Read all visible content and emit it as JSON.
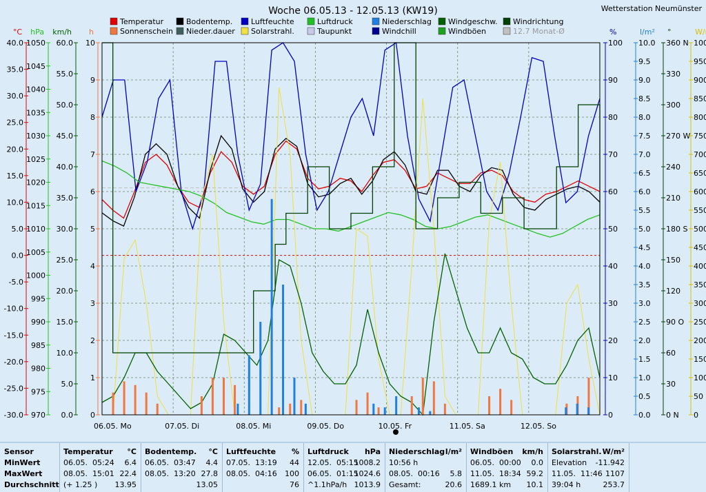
{
  "title": "Woche 06.05.13 - 12.05.13 (KW19)",
  "station": "Wetterstation Neumünster",
  "legend": [
    {
      "label": "Temperatur",
      "color": "#e00000"
    },
    {
      "label": "Bodentemp.",
      "color": "#000000"
    },
    {
      "label": "Luftfeuchte",
      "color": "#0000c0"
    },
    {
      "label": "Luftdruck",
      "color": "#22c022"
    },
    {
      "label": "Niederschlag",
      "color": "#2080e0"
    },
    {
      "label": "Windgeschw.",
      "color": "#006000"
    },
    {
      "label": "Windrichtung",
      "color": "#004000"
    },
    {
      "label": "Sonnenschein",
      "color": "#f07840"
    },
    {
      "label": "Nieder.dauer",
      "color": "#406060"
    },
    {
      "label": "Solarstrahl.",
      "color": "#f0e040"
    },
    {
      "label": "Taupunkt",
      "color": "#c8c8e8"
    },
    {
      "label": "Windchill",
      "color": "#000090"
    },
    {
      "label": "Windböen",
      "color": "#20a020"
    },
    {
      "label": "12.7 Monat-Ø",
      "color": "#c0c0c0"
    }
  ],
  "chart_data": {
    "type": "line",
    "title": "Woche 06.05.13 - 12.05.13 (KW19)",
    "x_labels": [
      "06.05. Mo",
      "07.05. Di",
      "08.05. Mi",
      "09.05. Do",
      "10.05. Fr",
      "11.05. Sa",
      "12.05. So"
    ],
    "left_axes": [
      {
        "unit": "°C",
        "ticks": [
          "40.0",
          "35.0",
          "30.0",
          "25.0",
          "20.0",
          "15.0",
          "10.0",
          "5.0",
          "0.0",
          "-5.0",
          "-10.0",
          "-15.0",
          "-20.0",
          "-25.0",
          "-30.0"
        ],
        "color": "#e00000"
      },
      {
        "unit": "hPa",
        "ticks": [
          "1050",
          "1045",
          "1040",
          "1035",
          "1030",
          "1025",
          "1020",
          "1015",
          "1010",
          "1005",
          "1000",
          "995",
          "990",
          "985",
          "980",
          "975",
          "970"
        ],
        "color": "#22c022"
      },
      {
        "unit": "km/h",
        "ticks": [
          "60.0",
          "55.0",
          "50.0",
          "45.0",
          "40.0",
          "35.0",
          "30.0",
          "25.0",
          "20.0",
          "15.0",
          "10.0",
          "5.0",
          "0.0"
        ],
        "color": "#006000"
      },
      {
        "unit": "h",
        "ticks": [
          "10",
          "9",
          "8",
          "7",
          "6",
          "5",
          "4",
          "3",
          "2",
          "1",
          "0"
        ],
        "color": "#f07840"
      }
    ],
    "right_axes": [
      {
        "unit": "%",
        "ticks": [
          "100",
          "90",
          "80",
          "70",
          "60",
          "50",
          "40",
          "30",
          "20",
          "10",
          "0"
        ],
        "color": "#0000c0"
      },
      {
        "unit": "l/m²",
        "ticks": [
          "10.0",
          "9.5",
          "9.0",
          "8.5",
          "8.0",
          "7.5",
          "7.0",
          "6.5",
          "6.0",
          "5.5",
          "5.0",
          "4.5",
          "4.0",
          "3.5",
          "3.0",
          "2.5",
          "2.0",
          "1.5",
          "1.0",
          "0.5",
          "0.0"
        ],
        "color": "#2080e0"
      },
      {
        "unit": "°",
        "ticks": [
          "360 N",
          "330",
          "300",
          "270 W",
          "240",
          "210",
          "180 S",
          "150",
          "120",
          "90 O",
          "60",
          "30",
          "0 N"
        ],
        "color": "#004000"
      },
      {
        "unit": "W/m²",
        "ticks": [
          "1000",
          "950",
          "900",
          "850",
          "800",
          "750",
          "700",
          "650",
          "600",
          "550",
          "500",
          "450",
          "400",
          "350",
          "300",
          "250",
          "200",
          "150",
          "100",
          "50",
          "0"
        ],
        "color": "#d8c000"
      }
    ],
    "series": [
      {
        "name": "Temperatur",
        "unit": "°C",
        "color": "#e00000",
        "values": [
          10.5,
          8.5,
          7.0,
          12.0,
          17.5,
          19.0,
          17.0,
          13.0,
          10.0,
          9.0,
          15.5,
          19.5,
          17.5,
          13.0,
          11.5,
          13.0,
          19.0,
          21.5,
          20.0,
          14.5,
          12.5,
          13.0,
          14.5,
          14.0,
          12.0,
          15.0,
          17.5,
          18.0,
          16.0,
          12.5,
          13.0,
          15.5,
          14.5,
          13.5,
          13.5,
          15.5,
          16.0,
          15.0,
          12.0,
          10.5,
          10.0,
          11.5,
          12.0,
          13.0,
          14.0,
          13.0,
          12.0
        ]
      },
      {
        "name": "Bodentemp.",
        "unit": "°C",
        "color": "#000000",
        "values": [
          8.0,
          6.5,
          5.5,
          11.0,
          19.0,
          21.0,
          19.0,
          13.0,
          9.0,
          7.0,
          16.0,
          22.5,
          20.0,
          12.5,
          10.0,
          12.0,
          20.0,
          22.0,
          20.5,
          13.5,
          11.0,
          11.5,
          13.5,
          14.5,
          11.5,
          14.0,
          18.0,
          19.5,
          17.0,
          12.0,
          11.5,
          16.0,
          16.0,
          13.0,
          12.0,
          15.0,
          16.5,
          16.0,
          11.5,
          9.0,
          8.5,
          10.5,
          11.5,
          12.5,
          13.0,
          12.0,
          10.0
        ]
      },
      {
        "name": "Luftfeuchte",
        "unit": "%",
        "color": "#0000c0",
        "values": [
          80,
          90,
          90,
          60,
          68,
          85,
          90,
          60,
          50,
          60,
          95,
          95,
          70,
          55,
          62,
          98,
          100,
          95,
          70,
          55,
          60,
          70,
          80,
          85,
          75,
          98,
          100,
          75,
          58,
          52,
          70,
          88,
          90,
          75,
          60,
          55,
          65,
          80,
          96,
          95,
          75,
          57,
          60,
          75,
          85
        ]
      },
      {
        "name": "Luftdruck",
        "unit": "hPa",
        "color": "#22c022",
        "values": [
          1024.6,
          1023.5,
          1022.0,
          1020.0,
          1019.5,
          1019.0,
          1018.5,
          1018.0,
          1017.0,
          1015.5,
          1013.5,
          1012.5,
          1011.5,
          1011.0,
          1012.0,
          1012.0,
          1011.0,
          1010.0,
          1010.0,
          1009.5,
          1010.5,
          1011.5,
          1012.5,
          1013.5,
          1013.0,
          1012.0,
          1010.5,
          1010.0,
          1010.5,
          1011.5,
          1012.5,
          1013.0,
          1012.0,
          1011.0,
          1010.0,
          1009.0,
          1008.2,
          1009.0,
          1010.5,
          1012.0,
          1013.0
        ]
      },
      {
        "name": "Solarstrahl.",
        "unit": "W/m²",
        "color": "#f0e040",
        "values": [
          0,
          0,
          420,
          470,
          300,
          50,
          0,
          0,
          0,
          580,
          700,
          250,
          0,
          0,
          0,
          0,
          880,
          700,
          200,
          0,
          0,
          0,
          0,
          500,
          480,
          150,
          0,
          0,
          400,
          850,
          500,
          50,
          0,
          0,
          0,
          520,
          680,
          300,
          0,
          0,
          0,
          0,
          300,
          350,
          150,
          0
        ]
      },
      {
        "name": "Windgeschw.",
        "unit": "km/h",
        "color": "#006000",
        "values": [
          2,
          3,
          6,
          10,
          10,
          7,
          5,
          3,
          1,
          2,
          5,
          13,
          12,
          10,
          8,
          12,
          25,
          24,
          18,
          10,
          7,
          5,
          5,
          8,
          17,
          10,
          5,
          3,
          2,
          0,
          15,
          26,
          20,
          14,
          10,
          10,
          14,
          10,
          9,
          6,
          5,
          5,
          8,
          12,
          14,
          6
        ]
      },
      {
        "name": "Windrichtung",
        "unit": "°",
        "color": "#004000",
        "values": [
          360,
          60,
          60,
          60,
          60,
          60,
          60,
          60,
          60,
          60,
          60,
          60,
          60,
          60,
          120,
          120,
          165,
          195,
          195,
          240,
          240,
          180,
          180,
          195,
          195,
          240,
          240,
          360,
          360,
          180,
          180,
          210,
          210,
          225,
          225,
          195,
          195,
          210,
          210,
          180,
          180,
          180,
          240,
          240,
          300,
          300,
          180
        ]
      },
      {
        "name": "Sonnenschein",
        "unit": "h",
        "color": "#f07840",
        "values": [
          0,
          0.6,
          0.9,
          0.8,
          0.6,
          0.3,
          0,
          0,
          0,
          0.5,
          1.0,
          1.0,
          0.8,
          0,
          0,
          0,
          0.2,
          0.3,
          0.4,
          0,
          0,
          0,
          0,
          0.4,
          0.6,
          0.2,
          0,
          0,
          0.5,
          1.0,
          0.9,
          0.3,
          0,
          0,
          0,
          0.5,
          0.7,
          0.4,
          0,
          0,
          0,
          0,
          0.3,
          0.5,
          1.0,
          0
        ]
      },
      {
        "name": "Niederschlag",
        "unit": "l/m²",
        "color": "#2080e0",
        "values": [
          0,
          0,
          0,
          0,
          0,
          0,
          0,
          0,
          0,
          0,
          0,
          0,
          0.3,
          1.6,
          2.5,
          5.8,
          3.5,
          1.0,
          0.3,
          0,
          0,
          0,
          0,
          0,
          0.3,
          0.2,
          0.5,
          0,
          0.2,
          0.1,
          0,
          0,
          0,
          0,
          0,
          0,
          0,
          0,
          0,
          0,
          0,
          0.2,
          0.3,
          0.2,
          0
        ]
      }
    ]
  },
  "stats": {
    "headers": [
      {
        "name": "Sensor",
        "unit": ""
      },
      {
        "name": "Temperatur",
        "unit": "°C"
      },
      {
        "name": "Bodentemp.",
        "unit": "°C"
      },
      {
        "name": "Luftfeuchte",
        "unit": "%"
      },
      {
        "name": "Luftdruck",
        "unit": "hPa"
      },
      {
        "name": "Niederschlag",
        "unit": "l/m²"
      },
      {
        "name": "Windböen",
        "unit": "km/h"
      },
      {
        "name": "Solarstrahl.",
        "unit": "W/m²"
      }
    ],
    "rows": [
      [
        "MinWert",
        "06.05.",
        "05:24",
        "6.4",
        "06.05.",
        "03:47",
        "4.4",
        "07.05.",
        "13:19",
        "44",
        "12.05.",
        "05:15",
        "1008.2",
        "10:56 h",
        "",
        "",
        "06.05.",
        "00:00",
        "0.0",
        "Elevation",
        "",
        "-11.942"
      ],
      [
        "MaxWert",
        "08.05.",
        "15:01",
        "22.4",
        "08.05.",
        "13:20",
        "27.8",
        "08.05.",
        "04:16",
        "100",
        "06.05.",
        "01:15",
        "1024.6",
        "08.05.",
        "00:16",
        "5.8",
        "11.05.",
        "18:34",
        "59.2",
        "11.05.",
        "11:46",
        "1107"
      ],
      [
        "Durchschnitt",
        "(+ 1.25 )",
        "",
        "13.95",
        "",
        "",
        "13.05",
        "",
        "",
        "76",
        "^1.1hPa/h",
        "",
        "1013.9",
        "Gesamt:",
        "",
        "20.6",
        "1689.1 km",
        "",
        "10.1",
        "39:04 h",
        "",
        "253.7"
      ]
    ]
  }
}
